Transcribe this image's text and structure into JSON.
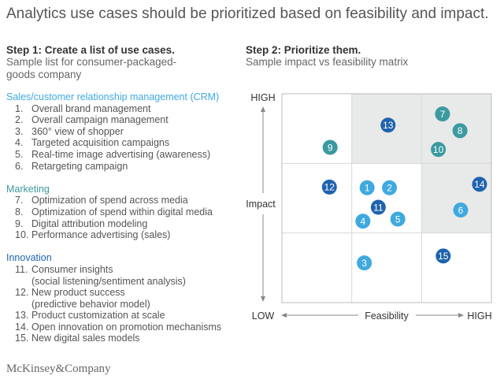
{
  "title": "Analytics use cases should be prioritized based on feasibility and impact.",
  "step1": {
    "heading": "Step 1: Create a list of use cases.",
    "subtitle_1": "Sample list for consumer-packaged-",
    "subtitle_2": "goods company"
  },
  "step2": {
    "heading": "Step 2: Prioritize them.",
    "subtitle": "Sample impact vs feasibility matrix"
  },
  "categories": [
    {
      "name": "Sales/customer relationship management (CRM)",
      "color": "#3fa9e0",
      "items": [
        {
          "n": "1.",
          "text": "Overall brand management"
        },
        {
          "n": "2.",
          "text": "Overall campaign management"
        },
        {
          "n": "3.",
          "text": "360° view of shopper"
        },
        {
          "n": "4.",
          "text": "Targeted acquisition campaigns"
        },
        {
          "n": "5.",
          "text": "Real-time image advertising (awareness)"
        },
        {
          "n": "6.",
          "text": "Retargeting campaign"
        }
      ]
    },
    {
      "name": "Marketing",
      "color": "#3b9aa0",
      "items": [
        {
          "n": "7.",
          "text": "Optimization of spend across media"
        },
        {
          "n": "8.",
          "text": "Optimization of spend within digital media"
        },
        {
          "n": "9.",
          "text": "Digital attribution modeling"
        },
        {
          "n": "10.",
          "text": "Performance advertising (sales)"
        }
      ]
    },
    {
      "name": "Innovation",
      "color": "#1f63ad",
      "items": [
        {
          "n": "11.",
          "text": "Consumer insights",
          "cont": "(social listening/sentiment analysis)"
        },
        {
          "n": "12.",
          "text": "New product success",
          "cont": "(predictive behavior model)"
        },
        {
          "n": "13.",
          "text": "Product customization at scale"
        },
        {
          "n": "14.",
          "text": "Open innovation on promotion mechanisms"
        },
        {
          "n": "15.",
          "text": "New digital sales models"
        }
      ]
    }
  ],
  "logo": "McKinsey&Company",
  "chart_data": {
    "type": "scatter",
    "xlabel": "Feasibility",
    "ylabel": "Impact",
    "x_low": "LOW",
    "x_high": "HIGH",
    "y_high": "HIGH",
    "grid": "3x3",
    "highlighted_cells": [
      "top-middle",
      "top-right",
      "middle-right"
    ],
    "highlight_color": "#e8e9e9",
    "points": [
      {
        "id": "1",
        "x": 1.22,
        "y": 1.65,
        "group": 0
      },
      {
        "id": "2",
        "x": 1.54,
        "y": 1.65,
        "group": 0
      },
      {
        "id": "3",
        "x": 1.18,
        "y": 0.57,
        "group": 0
      },
      {
        "id": "4",
        "x": 1.16,
        "y": 1.17,
        "group": 0
      },
      {
        "id": "5",
        "x": 1.66,
        "y": 1.2,
        "group": 0
      },
      {
        "id": "6",
        "x": 2.56,
        "y": 1.33,
        "group": 0
      },
      {
        "id": "7",
        "x": 2.3,
        "y": 2.71,
        "group": 1
      },
      {
        "id": "8",
        "x": 2.55,
        "y": 2.47,
        "group": 1
      },
      {
        "id": "9",
        "x": 0.69,
        "y": 2.23,
        "group": 1
      },
      {
        "id": "10",
        "x": 2.24,
        "y": 2.2,
        "group": 1
      },
      {
        "id": "11",
        "x": 1.38,
        "y": 1.37,
        "group": 2
      },
      {
        "id": "12",
        "x": 0.68,
        "y": 1.66,
        "group": 2
      },
      {
        "id": "13",
        "x": 1.52,
        "y": 2.55,
        "group": 2
      },
      {
        "id": "14",
        "x": 2.83,
        "y": 1.7,
        "group": 2
      },
      {
        "id": "15",
        "x": 2.31,
        "y": 0.67,
        "group": 2
      }
    ]
  }
}
